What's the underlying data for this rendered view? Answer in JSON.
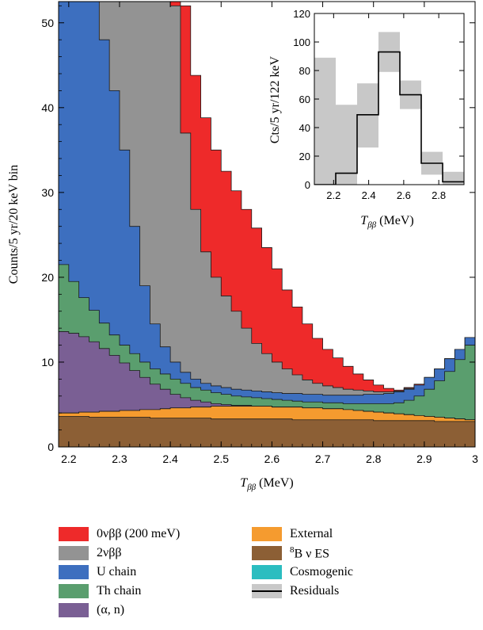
{
  "chart_data": [
    {
      "type": "area",
      "stacked": true,
      "step": true,
      "xlabel": "T_ββ (MeV)",
      "ylabel": "Counts/5 yr/20 keV bin",
      "xlim": [
        2.18,
        3.0
      ],
      "ylim": [
        0,
        52.5
      ],
      "xticks": [
        2.2,
        2.3,
        2.4,
        2.5,
        2.6,
        2.7,
        2.8,
        2.9,
        3
      ],
      "xtick_labels": [
        "2.2",
        "2.3",
        "2.4",
        "2.5",
        "2.6",
        "2.7",
        "2.8",
        "2.9",
        "3"
      ],
      "yticks": [
        0,
        10,
        20,
        30,
        40,
        50
      ],
      "bin_edges": [
        2.18,
        2.2,
        2.22,
        2.24,
        2.26,
        2.28,
        2.3,
        2.32,
        2.34,
        2.36,
        2.38,
        2.4,
        2.42,
        2.44,
        2.46,
        2.48,
        2.5,
        2.52,
        2.54,
        2.56,
        2.58,
        2.6,
        2.62,
        2.64,
        2.66,
        2.68,
        2.7,
        2.72,
        2.74,
        2.76,
        2.78,
        2.8,
        2.82,
        2.84,
        2.86,
        2.88,
        2.9,
        2.92,
        2.94,
        2.96,
        2.98,
        3.0
      ],
      "cumulative_series": [
        {
          "name": "8B ν ES",
          "color": "#8c5f35",
          "values": [
            3.6,
            3.6,
            3.6,
            3.5,
            3.5,
            3.5,
            3.5,
            3.5,
            3.5,
            3.4,
            3.4,
            3.4,
            3.4,
            3.4,
            3.4,
            3.3,
            3.3,
            3.3,
            3.3,
            3.3,
            3.3,
            3.3,
            3.3,
            3.2,
            3.2,
            3.2,
            3.2,
            3.2,
            3.2,
            3.2,
            3.2,
            3.1,
            3.1,
            3.1,
            3.1,
            3.1,
            3.1,
            3.0,
            3.0,
            3.0,
            3.0
          ]
        },
        {
          "name": "External",
          "color": "#f59b2f",
          "values": [
            4.0,
            4.0,
            4.1,
            4.1,
            4.2,
            4.2,
            4.3,
            4.3,
            4.4,
            4.4,
            4.5,
            4.6,
            4.6,
            4.7,
            4.7,
            4.8,
            4.8,
            4.8,
            4.8,
            4.8,
            4.8,
            4.7,
            4.7,
            4.7,
            4.6,
            4.6,
            4.5,
            4.5,
            4.4,
            4.3,
            4.2,
            4.1,
            4.0,
            3.9,
            3.8,
            3.7,
            3.6,
            3.5,
            3.4,
            3.3,
            3.2
          ]
        },
        {
          "name": "Cosmogenic",
          "color": "#2bbdc0",
          "values": [
            4.0,
            4.0,
            4.1,
            4.1,
            4.2,
            4.2,
            4.3,
            4.3,
            4.4,
            4.4,
            4.5,
            4.6,
            4.6,
            4.7,
            4.7,
            4.8,
            4.8,
            4.8,
            4.8,
            4.8,
            4.8,
            4.7,
            4.7,
            4.7,
            4.6,
            4.6,
            4.5,
            4.5,
            4.4,
            4.3,
            4.2,
            4.1,
            4.0,
            3.9,
            3.8,
            3.7,
            3.6,
            3.5,
            3.4,
            3.3,
            3.2
          ]
        },
        {
          "name": "(α, n)",
          "color": "#7a5f94",
          "values": [
            13.6,
            13.4,
            13.0,
            12.4,
            11.6,
            10.8,
            9.9,
            9.0,
            8.2,
            7.4,
            6.8,
            6.2,
            5.8,
            5.5,
            5.3,
            5.1,
            5.0,
            4.9,
            4.9,
            4.8,
            4.8,
            4.7,
            4.7,
            4.7,
            4.6,
            4.6,
            4.5,
            4.5,
            4.4,
            4.3,
            4.2,
            4.1,
            4.0,
            3.9,
            3.8,
            3.7,
            3.6,
            3.5,
            3.4,
            3.3,
            3.2
          ]
        },
        {
          "name": "Th chain",
          "color": "#5a9e6e",
          "values": [
            21.5,
            19.5,
            17.6,
            16.1,
            14.6,
            13.2,
            12.0,
            11.0,
            10.0,
            9.2,
            8.6,
            8.0,
            7.5,
            7.0,
            6.7,
            6.4,
            6.2,
            6.0,
            5.9,
            5.8,
            5.7,
            5.6,
            5.5,
            5.4,
            5.3,
            5.3,
            5.2,
            5.2,
            5.1,
            5.1,
            5.1,
            5.1,
            5.1,
            5.2,
            5.5,
            6.0,
            6.8,
            7.8,
            8.9,
            10.3,
            12.0
          ]
        },
        {
          "name": "U chain",
          "color": "#3d6fbf",
          "values": [
            60,
            58,
            56,
            53,
            48,
            42,
            35,
            26,
            19,
            14.5,
            11.8,
            10.0,
            8.8,
            8.0,
            7.5,
            7.2,
            7.0,
            6.8,
            6.7,
            6.6,
            6.5,
            6.4,
            6.3,
            6.3,
            6.2,
            6.2,
            6.1,
            6.1,
            6.1,
            6.1,
            6.2,
            6.2,
            6.3,
            6.5,
            6.8,
            7.3,
            8.2,
            9.2,
            10.4,
            11.5,
            12.9
          ]
        },
        {
          "name": "2νββ",
          "color": "#939393",
          "values": [
            70,
            70,
            70,
            70,
            70,
            70,
            70,
            70,
            70,
            70,
            70,
            52,
            37,
            28,
            23,
            20,
            17.8,
            16.0,
            14.0,
            12.2,
            11.0,
            10.0,
            9.2,
            8.5,
            7.9,
            7.5,
            7.2,
            7.0,
            6.8,
            6.7,
            6.6,
            6.5,
            6.5,
            6.6,
            6.9,
            7.3,
            8.2,
            9.2,
            10.4,
            11.5,
            12.9
          ]
        },
        {
          "name": "0νββ (200 meV)",
          "color": "#ee2a2a",
          "values": [
            70,
            70,
            70,
            70,
            70,
            70,
            70,
            70,
            70,
            70,
            70,
            70,
            52,
            43.8,
            38.8,
            35.0,
            32.5,
            30.2,
            28.0,
            25.8,
            23.5,
            21.0,
            18.5,
            16.5,
            14.5,
            12.8,
            11.5,
            10.5,
            9.5,
            8.6,
            7.9,
            7.3,
            6.9,
            6.7,
            7.0,
            7.4,
            8.2,
            9.2,
            10.4,
            11.5,
            12.9
          ]
        }
      ]
    },
    {
      "type": "bar",
      "inset": true,
      "xlabel": "T_ββ (MeV)",
      "ylabel": "Cts/5 yr/122 keV",
      "xlim": [
        2.09,
        2.944
      ],
      "ylim": [
        0,
        120
      ],
      "xticks": [
        2.2,
        2.4,
        2.6,
        2.8
      ],
      "xtick_labels": [
        "2.2",
        "2.4",
        "2.6",
        "2.8"
      ],
      "yticks": [
        0,
        20,
        40,
        60,
        80,
        100,
        120
      ],
      "bin_edges": [
        2.09,
        2.212,
        2.334,
        2.456,
        2.578,
        2.7,
        2.822,
        2.944
      ],
      "series": [
        {
          "name": "Residuals",
          "values": [
            0,
            8,
            49,
            93,
            63,
            15,
            2
          ]
        },
        {
          "name": "Residuals band low",
          "values": [
            0,
            0,
            26,
            79,
            53,
            7,
            0
          ]
        },
        {
          "name": "Residuals band high",
          "values": [
            89,
            56,
            71,
            107,
            73,
            23,
            9
          ]
        }
      ]
    }
  ],
  "axis_text": {
    "main_x_symbol": "T",
    "main_x_sub": "ββ",
    "main_x_unit": "(MeV)",
    "main_ylabel": "Counts/5 yr/20 keV bin",
    "inset_x_symbol": "T",
    "inset_x_sub": "ββ",
    "inset_x_unit": "(MeV)",
    "inset_ylabel": "Cts/5 yr/122 keV"
  },
  "legend": [
    {
      "label": "0νββ (200 meV)",
      "color": "#ee2a2a",
      "kind": "box"
    },
    {
      "label": "2νββ",
      "color": "#939393",
      "kind": "box"
    },
    {
      "label": "U chain",
      "color": "#3d6fbf",
      "kind": "box"
    },
    {
      "label": "Th chain",
      "color": "#5a9e6e",
      "kind": "box"
    },
    {
      "label": "(α, n)",
      "color": "#7a5f94",
      "kind": "box"
    },
    {
      "label": "External",
      "color": "#f59b2f",
      "kind": "box"
    },
    {
      "label": "B ν ES",
      "sup": "8",
      "color": "#8c5f35",
      "kind": "box"
    },
    {
      "label": "Cosmogenic",
      "color": "#2bbdc0",
      "kind": "box"
    },
    {
      "label": "Residuals",
      "color": "#c8c8c8",
      "kind": "line"
    }
  ]
}
